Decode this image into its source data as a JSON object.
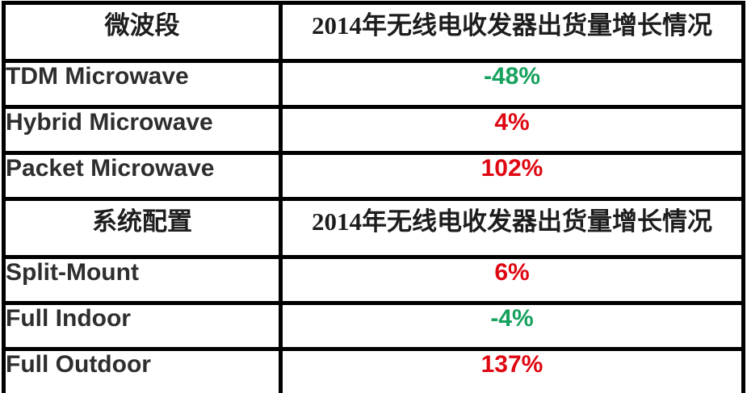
{
  "colors": {
    "positive_red": "#df0712",
    "negative_green": "#17a15e",
    "border_black": "#000000",
    "header_text": "#1d1d1d",
    "label_text": "#2e2e2e"
  },
  "table": {
    "sections": [
      {
        "header": {
          "col1": "微波段",
          "col2": "2014年无线电收发器出货量增长情况"
        },
        "rows": [
          {
            "label": "TDM Microwave",
            "value": "-48%",
            "value_color": "#17a15e"
          },
          {
            "label": "Hybrid Microwave",
            "value": "4%",
            "value_color": "#df0712"
          },
          {
            "label": "Packet Microwave",
            "value": "102%",
            "value_color": "#df0712"
          }
        ]
      },
      {
        "header": {
          "col1": "系统配置",
          "col2": "2014年无线电收发器出货量增长情况"
        },
        "rows": [
          {
            "label": "Split-Mount",
            "value": "6%",
            "value_color": "#df0712"
          },
          {
            "label": "Full Indoor",
            "value": "-4%",
            "value_color": "#17a15e"
          },
          {
            "label": "Full Outdoor",
            "value": "137%",
            "value_color": "#df0712"
          }
        ]
      }
    ]
  },
  "chart_data": [
    {
      "type": "table",
      "columns": [
        "微波段",
        "2014年无线电收发器出货量增长情况"
      ],
      "rows": [
        [
          "TDM Microwave",
          "-48%"
        ],
        [
          "Hybrid Microwave",
          "4%"
        ],
        [
          "Packet Microwave",
          "102%"
        ]
      ],
      "values_percent": [
        -48,
        4,
        102
      ],
      "value_colors": [
        "green",
        "red",
        "red"
      ]
    },
    {
      "type": "table",
      "columns": [
        "系统配置",
        "2014年无线电收发器出货量增长情况"
      ],
      "rows": [
        [
          "Split-Mount",
          "6%"
        ],
        [
          "Full Indoor",
          "-4%"
        ],
        [
          "Full Outdoor",
          "137%"
        ]
      ],
      "values_percent": [
        6,
        -4,
        137
      ],
      "value_colors": [
        "red",
        "green",
        "red"
      ]
    }
  ]
}
